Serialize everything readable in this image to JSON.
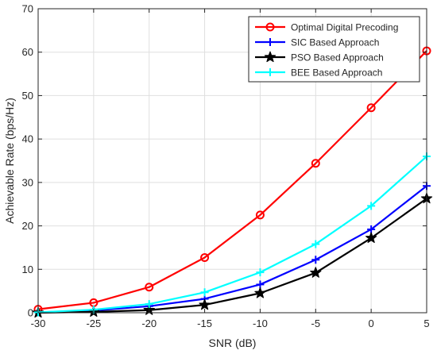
{
  "chart_data": {
    "type": "line",
    "title": "",
    "xlabel": "SNR (dB)",
    "ylabel": "Achievable Rate (bps/Hz)",
    "x": [
      -30,
      -25,
      -20,
      -15,
      -10,
      -5,
      0,
      5
    ],
    "xlim": [
      -30,
      5
    ],
    "ylim": [
      0,
      70
    ],
    "xticks": [
      -30,
      -25,
      -20,
      -15,
      -10,
      -5,
      0,
      5
    ],
    "yticks": [
      0,
      10,
      20,
      30,
      40,
      50,
      60,
      70
    ],
    "grid": true,
    "legend_position": "top-right",
    "series": [
      {
        "name": "Optimal Digital Precoding",
        "color": "#ff0000",
        "marker": "circle",
        "values": [
          0.8,
          2.3,
          5.9,
          12.7,
          22.5,
          34.4,
          47.2,
          60.3
        ]
      },
      {
        "name": "SIC Based Approach",
        "color": "#0000ff",
        "marker": "plus",
        "values": [
          0.1,
          0.5,
          1.5,
          3.2,
          6.5,
          12.2,
          19.2,
          29.2
        ]
      },
      {
        "name": "PSO Based Approach",
        "color": "#000000",
        "marker": "star",
        "values": [
          0.0,
          0.2,
          0.6,
          1.8,
          4.5,
          9.2,
          17.2,
          26.3
        ]
      },
      {
        "name": "BEE Based Approach",
        "color": "#00ffff",
        "marker": "plus",
        "values": [
          0.1,
          0.7,
          2.0,
          4.7,
          9.3,
          15.8,
          24.6,
          36.0
        ]
      }
    ]
  }
}
